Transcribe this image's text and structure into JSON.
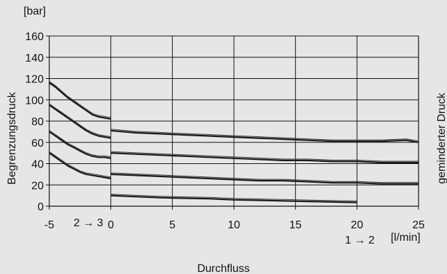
{
  "chart_data": {
    "type": "line",
    "xlabel": "Durchfluss",
    "x_unit": "[l/min]",
    "y_unit": "[bar]",
    "ylabel_left": "Begrenzungsdruck",
    "ylabel_right": "geminderter Druck",
    "xlim": [
      -5,
      25
    ],
    "ylim": [
      0,
      160
    ],
    "x_ticks": [
      "-5",
      "0",
      "5",
      "10",
      "15",
      "20",
      "25"
    ],
    "y_ticks": [
      "0",
      "20",
      "40",
      "60",
      "80",
      "100",
      "120",
      "140",
      "160"
    ],
    "flow_direction_labels": {
      "left": "2 → 3",
      "right": "1 → 2"
    },
    "grid": true,
    "series": [
      {
        "x": [
          -5,
          -4.5,
          -4,
          -3.5,
          -3,
          -2.5,
          -2,
          -1.5,
          -1,
          -0.5,
          0
        ],
        "y": [
          116,
          112,
          107,
          102,
          98,
          94,
          90,
          86,
          84,
          83,
          82
        ]
      },
      {
        "x": [
          -5,
          -4.5,
          -4,
          -3.5,
          -3,
          -2.5,
          -2,
          -1.5,
          -1,
          -0.5,
          0
        ],
        "y": [
          95,
          91,
          87,
          83,
          79,
          75,
          71,
          68,
          66,
          65,
          64
        ]
      },
      {
        "x": [
          -5,
          -4.5,
          -4,
          -3.5,
          -3,
          -2.5,
          -2,
          -1.5,
          -1,
          -0.5,
          0
        ],
        "y": [
          70,
          66,
          62,
          58,
          55,
          52,
          49,
          47,
          46,
          46,
          45
        ]
      },
      {
        "x": [
          -5,
          -4.5,
          -4,
          -3.5,
          -3,
          -2.5,
          -2,
          -1.5,
          -1,
          -0.5,
          0
        ],
        "y": [
          50,
          46,
          42,
          38,
          35,
          32,
          30,
          29,
          28,
          27,
          26
        ]
      },
      {
        "x": [
          0,
          2,
          4,
          6,
          8,
          10,
          12,
          14,
          16,
          18,
          20,
          22,
          24,
          25
        ],
        "y": [
          71,
          69,
          68,
          67,
          66,
          65,
          64,
          63,
          62,
          61,
          61,
          61,
          62,
          60
        ]
      },
      {
        "x": [
          0,
          2,
          4,
          6,
          8,
          10,
          12,
          14,
          16,
          18,
          20,
          22,
          24,
          25
        ],
        "y": [
          50,
          49,
          48,
          47,
          46,
          45,
          44,
          43,
          43,
          42,
          42,
          41,
          41,
          41
        ]
      },
      {
        "x": [
          0,
          2,
          4,
          6,
          8,
          10,
          12,
          14,
          16,
          18,
          20,
          22,
          24,
          25
        ],
        "y": [
          30,
          29,
          28,
          27,
          26,
          25,
          24,
          24,
          23,
          22,
          22,
          21,
          21,
          21
        ]
      },
      {
        "x": [
          0,
          2,
          4,
          6,
          8,
          10,
          12,
          14,
          16,
          18,
          20
        ],
        "y": [
          10,
          9,
          8,
          7.5,
          7,
          6,
          5.5,
          5,
          4.5,
          4,
          3.5
        ]
      }
    ]
  }
}
